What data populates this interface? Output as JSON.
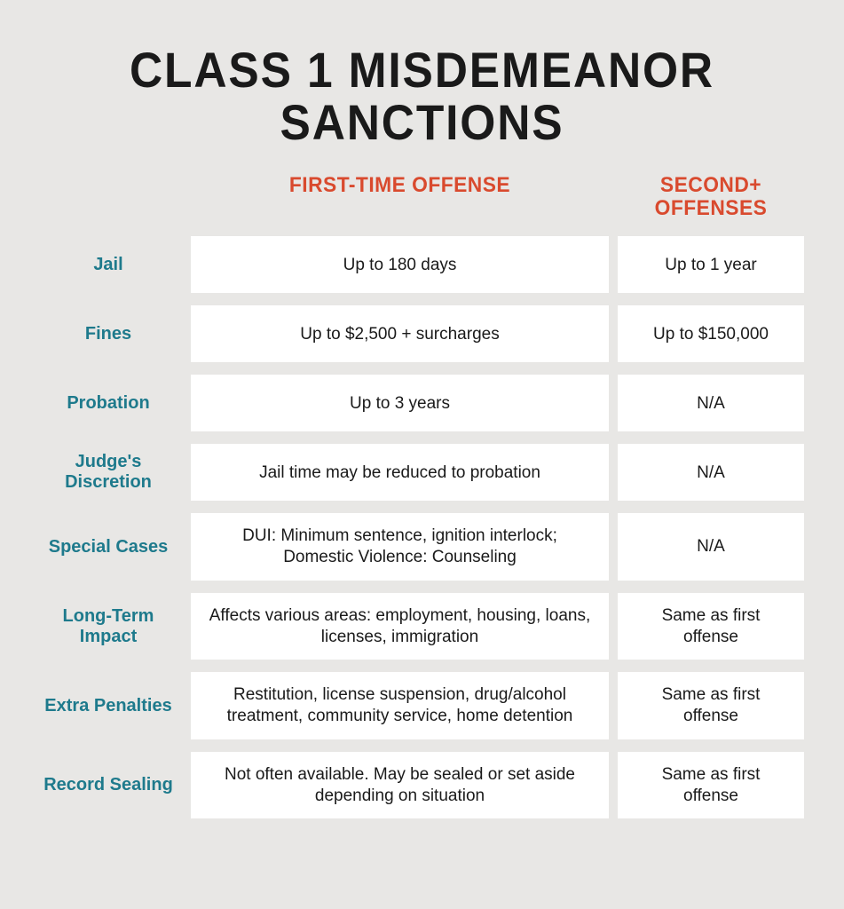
{
  "title": "CLASS 1 MISDEMEANOR SANCTIONS",
  "columns": {
    "first": "FIRST-TIME OFFENSE",
    "second": "SECOND+ OFFENSES"
  },
  "rows": [
    {
      "label": "Jail",
      "first": "Up to 180 days",
      "second": "Up to 1 year"
    },
    {
      "label": "Fines",
      "first": "Up to $2,500 + surcharges",
      "second": "Up to $150,000"
    },
    {
      "label": "Probation",
      "first": "Up to 3 years",
      "second": "N/A"
    },
    {
      "label": "Judge's Discretion",
      "first": "Jail time may be reduced to probation",
      "second": "N/A"
    },
    {
      "label": "Special Cases",
      "first": "DUI: Minimum sentence, ignition interlock; Domestic Violence: Counseling",
      "second": "N/A"
    },
    {
      "label": "Long-Term Impact",
      "first": "Affects various areas: employment, housing, loans, licenses, immigration",
      "second": "Same as first offense"
    },
    {
      "label": "Extra Penalties",
      "first": "Restitution, license suspension, drug/alcohol treatment, community service, home detention",
      "second": "Same as first offense"
    },
    {
      "label": "Record Sealing",
      "first": "Not often available. May be sealed or set aside depending on situation",
      "second": "Same as first offense"
    }
  ],
  "colors": {
    "background": "#e8e7e5",
    "title": "#1a1a1a",
    "header": "#d94a2e",
    "rowLabel": "#1e7a8c",
    "cellBg": "#ffffff",
    "cellText": "#1a1a1a"
  }
}
